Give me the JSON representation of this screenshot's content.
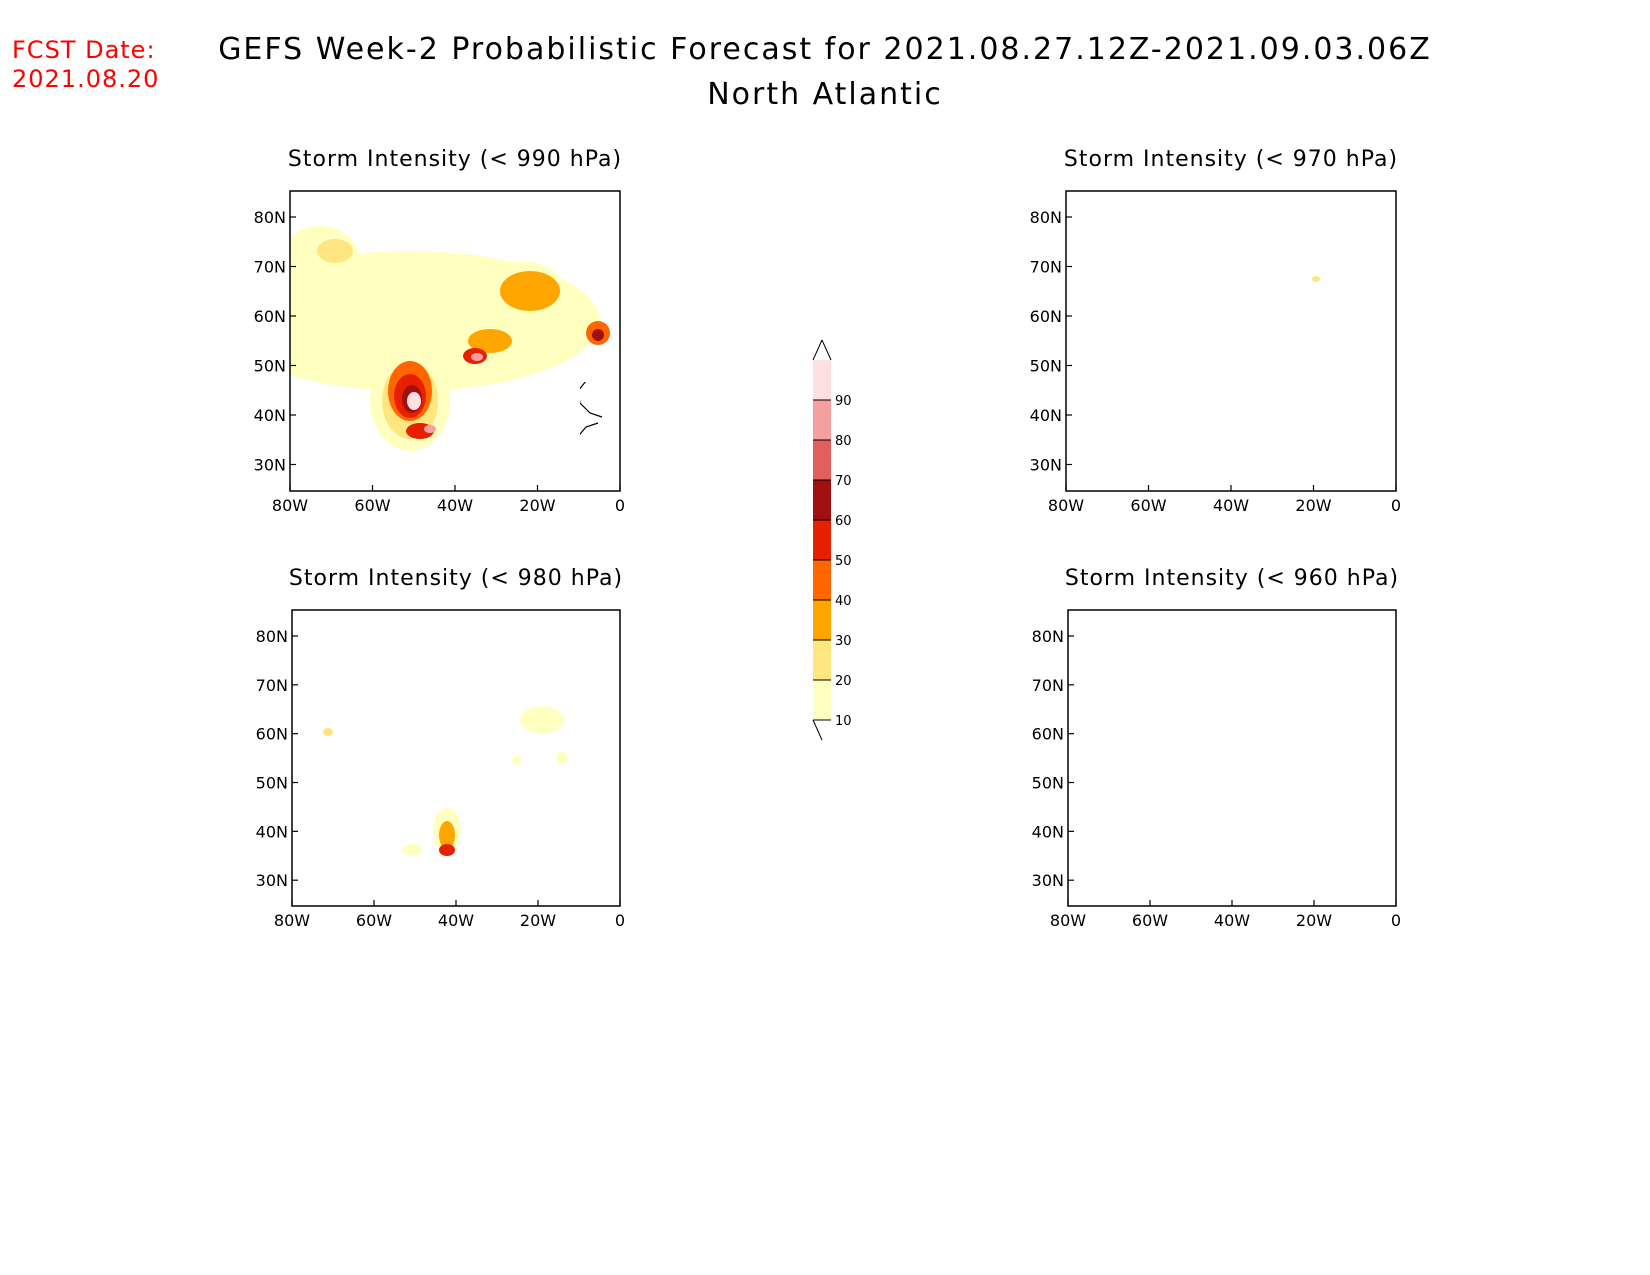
{
  "header": {
    "fcst_label": "FCST Date:",
    "fcst_date": "2021.08.20",
    "title": "GEFS Week-2 Probabilistic Forecast for 2021.08.27.12Z-2021.09.03.06Z",
    "subtitle": "North Atlantic"
  },
  "panels": [
    {
      "title": "Storm Intensity (< 990 hPa)"
    },
    {
      "title": "Storm Intensity (< 970 hPa)"
    },
    {
      "title": "Storm Intensity (< 980 hPa)"
    },
    {
      "title": "Storm Intensity (< 960 hPa)"
    }
  ],
  "axes": {
    "lon_ticks": [
      "80W",
      "60W",
      "40W",
      "20W",
      "0"
    ],
    "lat_ticks": [
      "80N",
      "70N",
      "60N",
      "50N",
      "40N",
      "30N"
    ]
  },
  "colorbar": {
    "levels": [
      "10",
      "20",
      "30",
      "40",
      "50",
      "60",
      "70",
      "80",
      "90"
    ],
    "colors": [
      "#ffffc0",
      "#ffe680",
      "#ffa500",
      "#ff6600",
      "#e62000",
      "#a01010",
      "#e06060",
      "#f4a0a0",
      "#ffe0e0"
    ]
  }
}
